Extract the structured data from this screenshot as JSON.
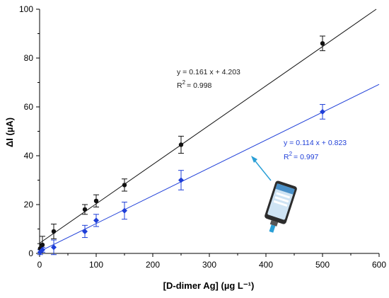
{
  "chart_data": {
    "type": "scatter",
    "xlabel": "[D-dimer Ag] (µg L⁻¹)",
    "ylabel": "ΔI (µA)",
    "xlim": [
      0,
      600
    ],
    "ylim": [
      0,
      100
    ],
    "x_ticks": [
      "0",
      "100",
      "200",
      "300",
      "400",
      "500",
      "600"
    ],
    "y_ticks": [
      "0",
      "20",
      "40",
      "60",
      "80",
      "100"
    ],
    "grid": false,
    "series": [
      {
        "color": "#111111",
        "points": [
          {
            "x": 1,
            "y": 2,
            "err": 2
          },
          {
            "x": 5,
            "y": 3.5,
            "err": 3.5
          },
          {
            "x": 25,
            "y": 9,
            "err": 3
          },
          {
            "x": 80,
            "y": 18,
            "err": 2
          },
          {
            "x": 100,
            "y": 21.5,
            "err": 2.5
          },
          {
            "x": 150,
            "y": 28,
            "err": 2.5
          },
          {
            "x": 250,
            "y": 44.5,
            "err": 3.5
          },
          {
            "x": 500,
            "y": 86,
            "err": 3
          }
        ],
        "fit": {
          "slope": 0.161,
          "intercept": 4.203,
          "equation": "y = 0.161 x + 4.203",
          "r2_label": "R",
          "r2_value": "= 0.998"
        }
      },
      {
        "color": "#1f3fd8",
        "points": [
          {
            "x": 1,
            "y": 0.5,
            "err": 1
          },
          {
            "x": 5,
            "y": 1.5,
            "err": 1
          },
          {
            "x": 25,
            "y": 2.5,
            "err": 3
          },
          {
            "x": 80,
            "y": 9,
            "err": 2.5
          },
          {
            "x": 100,
            "y": 13.5,
            "err": 2.5
          },
          {
            "x": 150,
            "y": 17.5,
            "err": 3.5
          },
          {
            "x": 250,
            "y": 30,
            "err": 4
          },
          {
            "x": 500,
            "y": 58,
            "err": 3
          }
        ],
        "fit": {
          "slope": 0.114,
          "intercept": 0.823,
          "equation": "y = 0.114 x + 0.823",
          "r2_label": "R",
          "r2_value": "= 0.997"
        }
      }
    ],
    "annotation": {
      "icon": "smartphone-icon",
      "arrow_color": "#2a9fd6"
    }
  }
}
